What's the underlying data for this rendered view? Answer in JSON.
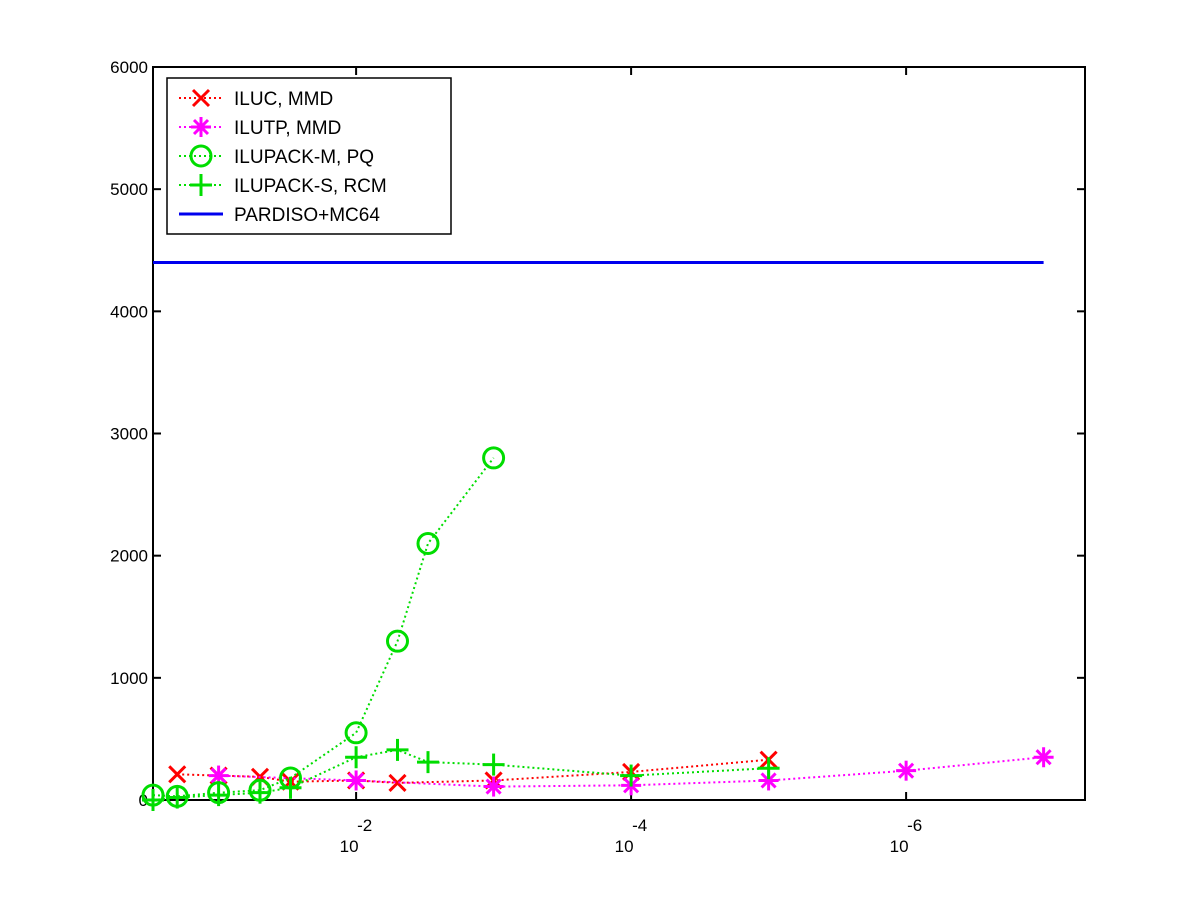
{
  "chart_data": {
    "type": "line",
    "title": "",
    "xlabel": "",
    "ylabel": "",
    "x_scale": "log",
    "x_direction": "decreasing",
    "xlim": [
      0.3,
      5e-08
    ],
    "ylim": [
      0,
      6000
    ],
    "grid": false,
    "legend_position": "top-left",
    "y_ticks": [
      0,
      1000,
      2000,
      3000,
      4000,
      5000,
      6000
    ],
    "x_ticks": [
      {
        "value": 0.01,
        "base": "10",
        "exponent": "-2"
      },
      {
        "value": 0.0001,
        "base": "10",
        "exponent": "-4"
      },
      {
        "value": 1e-06,
        "base": "10",
        "exponent": "-6"
      }
    ],
    "series": [
      {
        "name": "ILUC, MMD",
        "color": "#ff0000",
        "marker": "x",
        "line_style": "dotted",
        "x": [
          0.2,
          0.1,
          0.05,
          0.03,
          0.01,
          0.005,
          0.001,
          0.0001,
          1e-05
        ],
        "y": [
          210,
          200,
          190,
          150,
          160,
          140,
          160,
          230,
          330
        ]
      },
      {
        "name": "ILUTP, MMD",
        "color": "#ff00ff",
        "marker": "asterisk",
        "line_style": "dotted",
        "x": [
          0.1,
          0.01,
          0.001,
          0.0001,
          1e-05,
          1e-06,
          1e-07
        ],
        "y": [
          200,
          160,
          110,
          120,
          160,
          240,
          350
        ]
      },
      {
        "name": "ILUPACK-M, PQ",
        "color": "#00dd00",
        "marker": "circle",
        "line_style": "dotted",
        "x": [
          0.3,
          0.2,
          0.1,
          0.05,
          0.03,
          0.01,
          0.005,
          0.003,
          0.001
        ],
        "y": [
          40,
          30,
          60,
          80,
          180,
          550,
          1300,
          2100,
          2800
        ]
      },
      {
        "name": "ILUPACK-S, RCM",
        "color": "#00dd00",
        "marker": "plus",
        "line_style": "dotted",
        "x": [
          0.3,
          0.2,
          0.1,
          0.05,
          0.03,
          0.01,
          0.005,
          0.003,
          0.001,
          0.0001,
          1e-05
        ],
        "y": [
          0,
          20,
          40,
          60,
          100,
          350,
          410,
          310,
          290,
          200,
          260
        ]
      },
      {
        "name": "PARDISO+MC64",
        "color": "#0000ee",
        "marker": "none",
        "line_style": "solid",
        "x": [
          0.3,
          1e-07
        ],
        "y": [
          4400,
          4400
        ]
      }
    ]
  }
}
